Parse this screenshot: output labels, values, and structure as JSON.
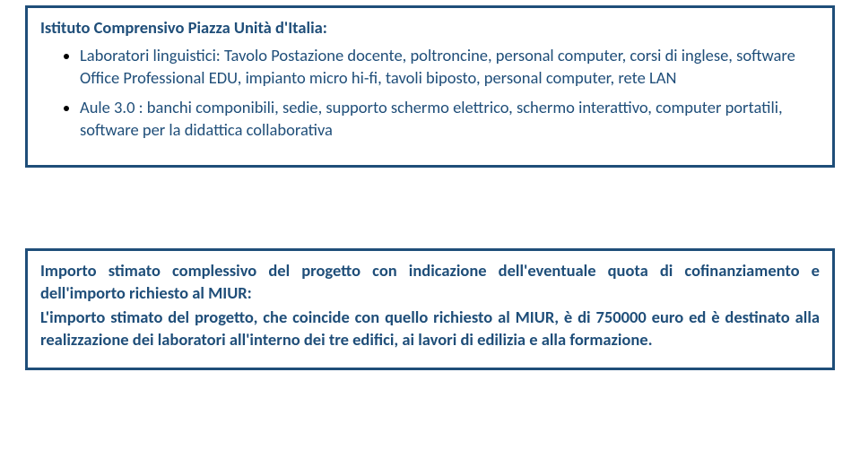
{
  "colors": {
    "text": "#1f4e79",
    "border": "#1f4e79",
    "bullet": "#000000",
    "background": "#ffffff"
  },
  "box1": {
    "title": "Istituto Comprensivo Piazza Unità d'Italia:",
    "items": [
      "Laboratori linguistici: Tavolo Postazione docente, poltroncine, personal computer, corsi di inglese, software Office Professional EDU, impianto micro hi-fi, tavoli biposto, personal computer, rete LAN",
      "Aule 3.0 : banchi componibili, sedie, supporto schermo elettrico, schermo interattivo, computer portatili, software per la didattica collaborativa"
    ]
  },
  "box2": {
    "line1": "Importo stimato complessivo del progetto con indicazione dell'eventuale quota di cofinanziamento e dell'importo richiesto al MIUR:",
    "line2": "L'importo stimato del progetto, che coincide con quello richiesto al MIUR,  è di 750000 euro ed è destinato alla realizzazione dei laboratori all'interno dei tre edifici, ai lavori di edilizia e alla formazione."
  }
}
